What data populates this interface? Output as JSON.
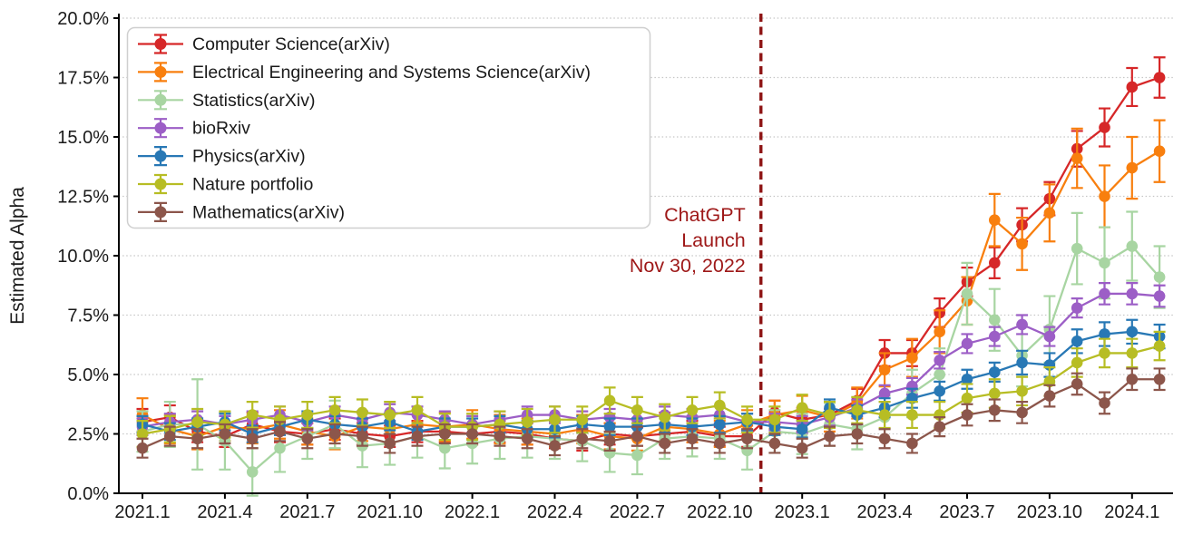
{
  "chart_data": {
    "type": "line",
    "title": "",
    "xlabel": "",
    "ylabel": "Estimated Alpha",
    "ylim": [
      0,
      20
    ],
    "ytick_step": 2.5,
    "ytick_suffix": "%",
    "grid": "horizontal-dashed",
    "legend_position": "upper-left",
    "xtick_every": 3,
    "x": [
      "2021.1",
      "2021.2",
      "2021.3",
      "2021.4",
      "2021.5",
      "2021.6",
      "2021.7",
      "2021.8",
      "2021.9",
      "2021.10",
      "2021.11",
      "2021.12",
      "2022.1",
      "2022.2",
      "2022.3",
      "2022.4",
      "2022.5",
      "2022.6",
      "2022.7",
      "2022.8",
      "2022.9",
      "2022.10",
      "2022.11",
      "2022.12",
      "2023.1",
      "2023.2",
      "2023.3",
      "2023.4",
      "2023.5",
      "2023.6",
      "2023.7",
      "2023.8",
      "2023.9",
      "2023.10",
      "2023.11",
      "2023.12",
      "2024.1",
      "2024.2"
    ],
    "vline": {
      "x_index": 22.5,
      "style": "dashed",
      "color": "#8e1414",
      "annotation_lines": [
        "ChatGPT",
        "Launch",
        "Nov 30, 2022"
      ],
      "annotation_color": "#9e1818"
    },
    "series": [
      {
        "name": "Computer Science(arXiv)",
        "color": "#d62728",
        "values": [
          3.0,
          3.2,
          2.6,
          2.4,
          2.9,
          2.6,
          2.5,
          2.7,
          2.5,
          2.4,
          2.6,
          2.6,
          2.5,
          2.6,
          2.5,
          2.3,
          2.2,
          2.5,
          2.4,
          2.5,
          2.6,
          2.4,
          2.4,
          3.4,
          3.1,
          3.3,
          3.9,
          5.9,
          5.9,
          7.6,
          8.9,
          9.7,
          11.3,
          12.4,
          14.5,
          15.4,
          17.1,
          17.5
        ],
        "err": [
          0.55,
          0.5,
          0.45,
          0.45,
          0.5,
          0.45,
          0.45,
          0.45,
          0.45,
          0.45,
          0.45,
          0.45,
          0.45,
          0.45,
          0.45,
          0.4,
          0.4,
          0.45,
          0.4,
          0.45,
          0.45,
          0.4,
          0.45,
          0.5,
          0.5,
          0.5,
          0.5,
          0.55,
          0.55,
          0.6,
          0.6,
          0.65,
          0.7,
          0.7,
          0.75,
          0.8,
          0.8,
          0.85
        ]
      },
      {
        "name": "Electrical Engineering and Systems Science(arXiv)",
        "color": "#f87f0e",
        "values": [
          3.3,
          2.7,
          2.4,
          2.8,
          2.7,
          2.9,
          2.6,
          2.4,
          2.8,
          2.7,
          2.9,
          2.8,
          2.9,
          2.7,
          2.6,
          2.5,
          2.7,
          2.4,
          2.3,
          2.8,
          2.7,
          2.5,
          2.9,
          3.3,
          3.5,
          3.2,
          3.8,
          5.2,
          5.7,
          6.8,
          8.1,
          11.5,
          10.5,
          11.8,
          14.1,
          12.5,
          13.7,
          14.4
        ],
        "err": [
          0.7,
          0.6,
          0.55,
          0.6,
          0.6,
          0.6,
          0.55,
          0.55,
          0.6,
          0.6,
          0.6,
          0.6,
          0.6,
          0.6,
          0.55,
          0.55,
          0.6,
          0.55,
          0.5,
          0.6,
          0.55,
          0.55,
          0.6,
          0.6,
          0.6,
          0.6,
          0.65,
          0.7,
          0.8,
          0.9,
          1.0,
          1.1,
          1.1,
          1.2,
          1.25,
          1.3,
          1.3,
          1.3
        ]
      },
      {
        "name": "Statistics(arXiv)",
        "color": "#a8d5a2",
        "values": [
          2.6,
          2.9,
          2.9,
          2.2,
          0.9,
          1.9,
          2.4,
          2.9,
          2.0,
          2.1,
          2.4,
          1.9,
          2.1,
          2.3,
          2.4,
          2.3,
          2.2,
          1.7,
          1.6,
          2.3,
          2.4,
          2.3,
          1.8,
          2.6,
          2.5,
          2.9,
          2.7,
          3.2,
          4.2,
          5.0,
          8.4,
          7.3,
          5.8,
          6.9,
          10.3,
          9.7,
          10.4,
          9.1
        ],
        "err": [
          0.85,
          0.95,
          1.9,
          1.2,
          1.0,
          1.0,
          0.95,
          1.0,
          0.9,
          0.9,
          0.9,
          0.85,
          0.85,
          0.85,
          0.9,
          0.85,
          0.85,
          0.8,
          0.8,
          0.85,
          0.85,
          0.85,
          0.8,
          0.9,
          0.85,
          0.9,
          0.85,
          0.9,
          1.0,
          1.1,
          1.3,
          1.3,
          1.3,
          1.4,
          1.5,
          1.5,
          1.45,
          1.3
        ]
      },
      {
        "name": "bioRxiv",
        "color": "#9c5ec6",
        "values": [
          2.8,
          3.0,
          3.1,
          2.9,
          3.1,
          3.3,
          3.0,
          3.3,
          3.1,
          3.4,
          3.3,
          3.1,
          2.9,
          3.1,
          3.3,
          3.3,
          3.1,
          3.2,
          3.1,
          3.3,
          3.2,
          3.3,
          3.0,
          3.0,
          2.9,
          3.2,
          3.6,
          4.2,
          4.5,
          5.6,
          6.3,
          6.6,
          7.1,
          6.6,
          7.8,
          8.4,
          8.4,
          8.3
        ],
        "err": [
          0.35,
          0.35,
          0.35,
          0.35,
          0.35,
          0.35,
          0.35,
          0.35,
          0.35,
          0.35,
          0.35,
          0.35,
          0.35,
          0.35,
          0.35,
          0.35,
          0.35,
          0.35,
          0.35,
          0.35,
          0.35,
          0.35,
          0.35,
          0.35,
          0.35,
          0.35,
          0.35,
          0.35,
          0.35,
          0.35,
          0.4,
          0.4,
          0.4,
          0.4,
          0.4,
          0.45,
          0.45,
          0.45
        ]
      },
      {
        "name": "Physics(arXiv)",
        "color": "#2878b5",
        "values": [
          2.9,
          2.6,
          2.8,
          3.0,
          2.5,
          2.8,
          3.1,
          2.9,
          2.8,
          3.0,
          2.6,
          2.8,
          2.8,
          2.9,
          2.7,
          2.7,
          2.9,
          2.8,
          2.8,
          2.9,
          2.8,
          2.9,
          3.0,
          2.8,
          2.7,
          3.6,
          3.3,
          3.6,
          4.0,
          4.3,
          4.8,
          5.1,
          5.5,
          5.4,
          6.4,
          6.7,
          6.8,
          6.6
        ],
        "err": [
          0.35,
          0.35,
          0.35,
          0.35,
          0.35,
          0.35,
          0.35,
          0.35,
          0.35,
          0.35,
          0.35,
          0.35,
          0.35,
          0.35,
          0.35,
          0.35,
          0.35,
          0.35,
          0.35,
          0.35,
          0.35,
          0.35,
          0.35,
          0.35,
          0.35,
          0.35,
          0.4,
          0.4,
          0.4,
          0.4,
          0.4,
          0.4,
          0.5,
          0.5,
          0.5,
          0.5,
          0.5,
          0.5
        ]
      },
      {
        "name": "Nature portfolio",
        "color": "#b7bd24",
        "values": [
          2.5,
          2.7,
          3.0,
          2.9,
          3.3,
          3.1,
          3.3,
          3.5,
          3.4,
          3.3,
          3.5,
          2.8,
          2.8,
          2.9,
          3.0,
          3.1,
          3.1,
          3.9,
          3.5,
          3.2,
          3.5,
          3.7,
          3.1,
          3.1,
          3.6,
          3.3,
          3.5,
          3.3,
          3.3,
          3.3,
          4.0,
          4.2,
          4.3,
          4.7,
          5.5,
          5.9,
          5.9,
          6.2
        ],
        "err": [
          0.55,
          0.55,
          0.55,
          0.55,
          0.55,
          0.55,
          0.55,
          0.55,
          0.55,
          0.55,
          0.55,
          0.55,
          0.55,
          0.55,
          0.55,
          0.55,
          0.55,
          0.55,
          0.55,
          0.55,
          0.55,
          0.55,
          0.55,
          0.55,
          0.55,
          0.55,
          0.55,
          0.55,
          0.55,
          0.55,
          0.6,
          0.6,
          0.6,
          0.6,
          0.6,
          0.6,
          0.6,
          0.6
        ]
      },
      {
        "name": "Mathematics(arXiv)",
        "color": "#8c564b",
        "values": [
          1.9,
          2.4,
          2.3,
          2.5,
          2.3,
          2.6,
          2.3,
          2.5,
          2.4,
          2.1,
          2.4,
          2.5,
          2.5,
          2.4,
          2.3,
          2.0,
          2.3,
          2.2,
          2.4,
          2.1,
          2.3,
          2.1,
          2.3,
          2.1,
          1.9,
          2.4,
          2.5,
          2.3,
          2.1,
          2.8,
          3.3,
          3.5,
          3.4,
          4.1,
          4.6,
          3.8,
          4.8,
          4.8
        ],
        "err": [
          0.4,
          0.4,
          0.4,
          0.4,
          0.4,
          0.4,
          0.4,
          0.4,
          0.4,
          0.4,
          0.4,
          0.4,
          0.4,
          0.4,
          0.4,
          0.4,
          0.4,
          0.4,
          0.4,
          0.4,
          0.4,
          0.4,
          0.4,
          0.4,
          0.4,
          0.4,
          0.4,
          0.4,
          0.4,
          0.4,
          0.45,
          0.45,
          0.45,
          0.45,
          0.45,
          0.45,
          0.45,
          0.45
        ]
      }
    ]
  }
}
